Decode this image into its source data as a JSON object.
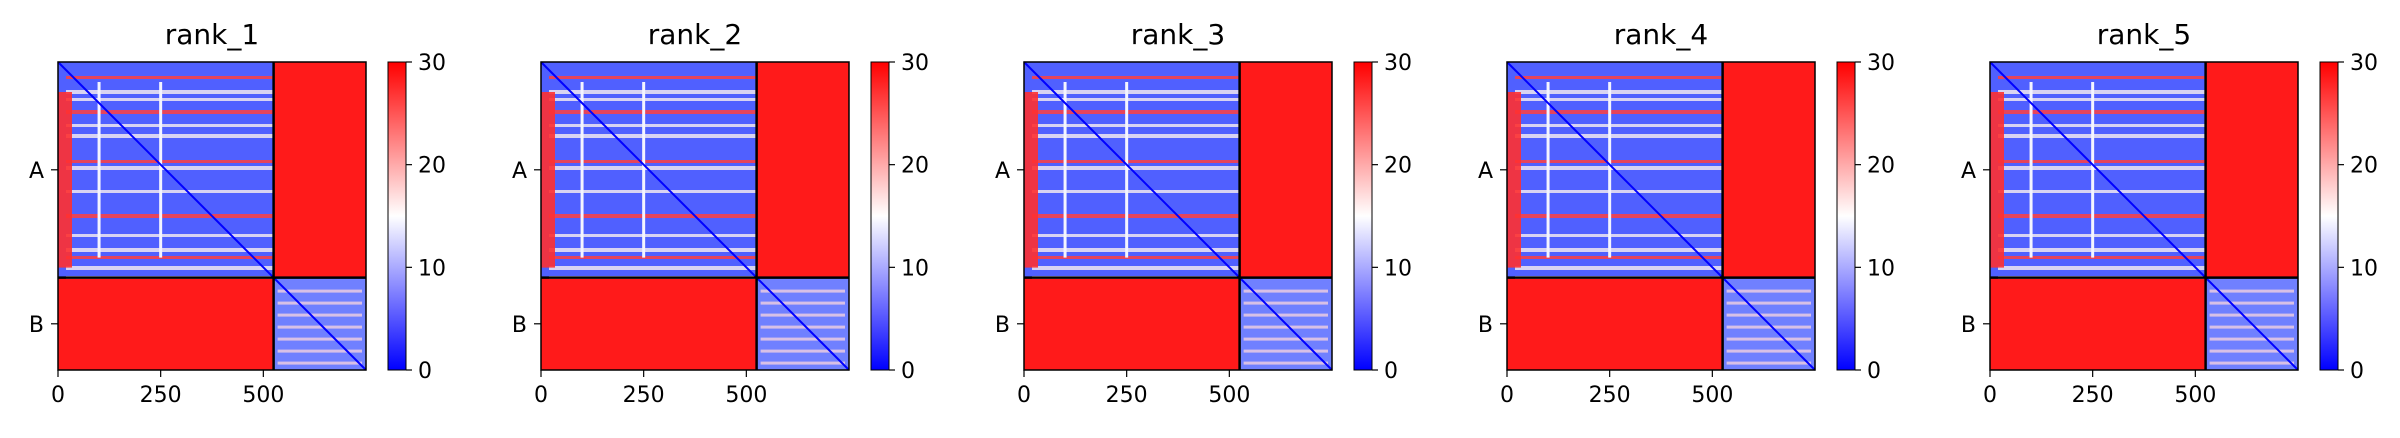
{
  "chart_data": [
    {
      "type": "heatmap",
      "title": "rank_1",
      "ytick_labels": [
        "A",
        "B"
      ],
      "xticks": [
        0,
        250,
        500
      ],
      "xlim": [
        0,
        750
      ],
      "chains": [
        {
          "name": "A",
          "length": 525
        },
        {
          "name": "B",
          "length": 225
        }
      ],
      "colorbar": {
        "min": 0,
        "max": 30,
        "ticks": [
          0,
          10,
          20,
          30
        ]
      },
      "colormap": [
        "#0000ff",
        "#ffffff",
        "#ff0000"
      ]
    },
    {
      "type": "heatmap",
      "title": "rank_2",
      "ytick_labels": [
        "A",
        "B"
      ],
      "xticks": [
        0,
        250,
        500
      ],
      "xlim": [
        0,
        750
      ],
      "chains": [
        {
          "name": "A",
          "length": 525
        },
        {
          "name": "B",
          "length": 225
        }
      ],
      "colorbar": {
        "min": 0,
        "max": 30,
        "ticks": [
          0,
          10,
          20,
          30
        ]
      },
      "colormap": [
        "#0000ff",
        "#ffffff",
        "#ff0000"
      ]
    },
    {
      "type": "heatmap",
      "title": "rank_3",
      "ytick_labels": [
        "A",
        "B"
      ],
      "xticks": [
        0,
        250,
        500
      ],
      "xlim": [
        0,
        750
      ],
      "chains": [
        {
          "name": "A",
          "length": 525
        },
        {
          "name": "B",
          "length": 225
        }
      ],
      "colorbar": {
        "min": 0,
        "max": 30,
        "ticks": [
          0,
          10,
          20,
          30
        ]
      },
      "colormap": [
        "#0000ff",
        "#ffffff",
        "#ff0000"
      ]
    },
    {
      "type": "heatmap",
      "title": "rank_4",
      "ytick_labels": [
        "A",
        "B"
      ],
      "xticks": [
        0,
        250,
        500
      ],
      "xlim": [
        0,
        750
      ],
      "chains": [
        {
          "name": "A",
          "length": 525
        },
        {
          "name": "B",
          "length": 225
        }
      ],
      "colorbar": {
        "min": 0,
        "max": 30,
        "ticks": [
          0,
          10,
          20,
          30
        ]
      },
      "colormap": [
        "#0000ff",
        "#ffffff",
        "#ff0000"
      ]
    },
    {
      "type": "heatmap",
      "title": "rank_5",
      "ytick_labels": [
        "A",
        "B"
      ],
      "xticks": [
        0,
        250,
        500
      ],
      "xlim": [
        0,
        750
      ],
      "chains": [
        {
          "name": "A",
          "length": 525
        },
        {
          "name": "B",
          "length": 225
        }
      ],
      "colorbar": {
        "min": 0,
        "max": 30,
        "ticks": [
          0,
          10,
          20,
          30
        ]
      },
      "colormap": [
        "#0000ff",
        "#ffffff",
        "#ff0000"
      ]
    }
  ]
}
